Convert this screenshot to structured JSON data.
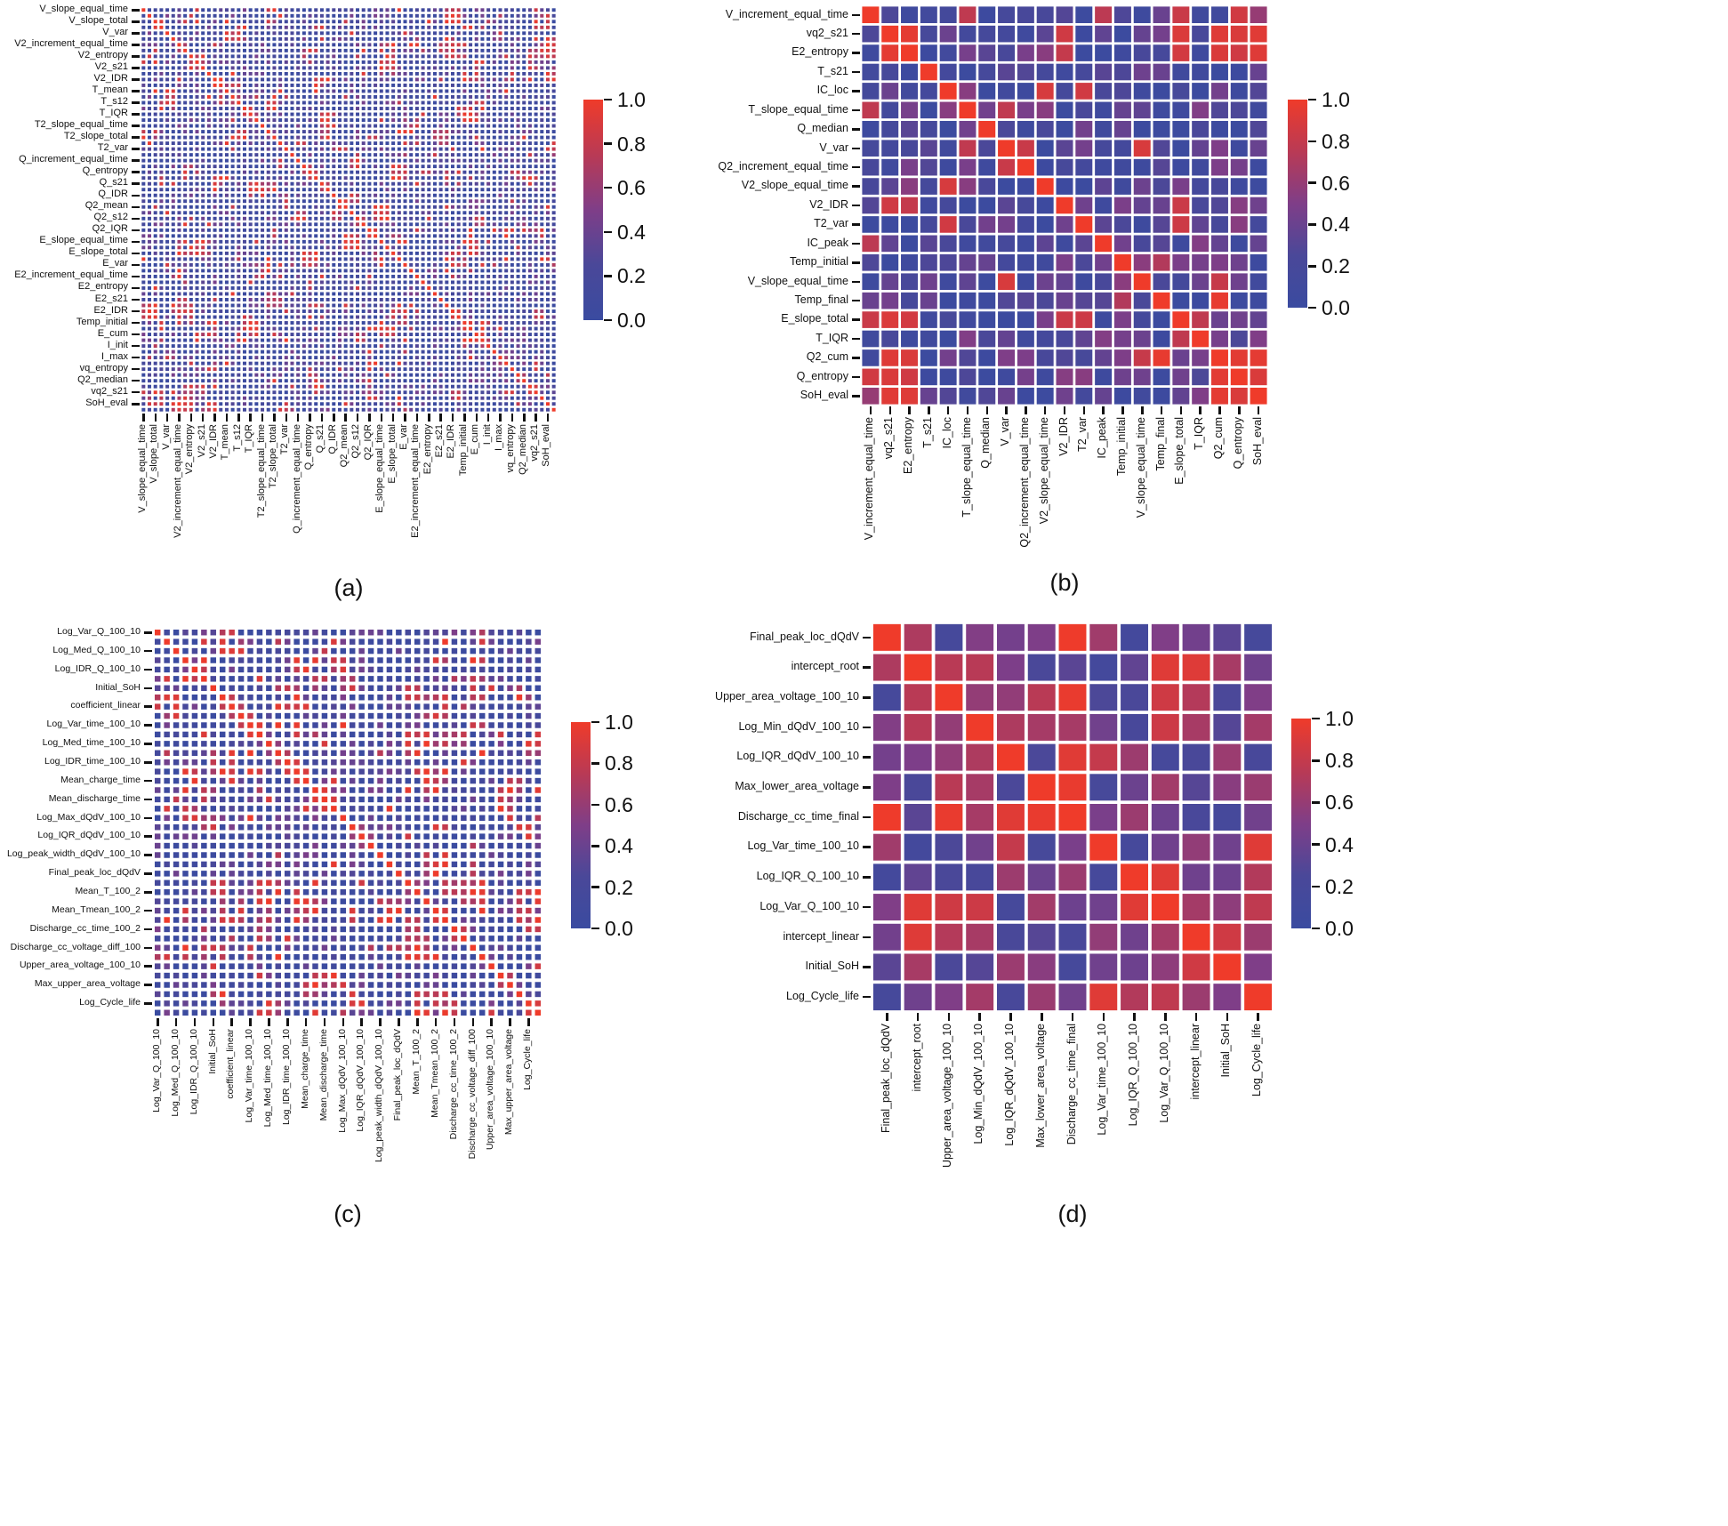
{
  "figure": {
    "background": "#ffffff",
    "colormap": {
      "name": "blue-purple-red",
      "stops": [
        {
          "t": 0.0,
          "color": "#3A4BA0"
        },
        {
          "t": 0.25,
          "color": "#4A4899"
        },
        {
          "t": 0.5,
          "color": "#7F3E88"
        },
        {
          "t": 0.75,
          "color": "#B93A55"
        },
        {
          "t": 1.0,
          "color": "#EF3B2A"
        }
      ]
    },
    "colorbar_ticks": [
      "1.0",
      "0.8",
      "0.6",
      "0.4",
      "0.2",
      "0.0"
    ],
    "value_range": [
      0,
      1
    ]
  },
  "chart_data": [
    {
      "id": "a",
      "type": "heatmap",
      "caption": "(a)",
      "legend_position": "right-colorbar",
      "grid": false,
      "tick_every": 2,
      "matrix_size": 70,
      "labels": [
        "V_slope_equal_time",
        "V_slope_total",
        "V_var",
        "V2_increment_equal_time",
        "V2_entropy",
        "V2_s21",
        "V2_IDR",
        "T_mean",
        "T_s12",
        "T_IQR",
        "T2_slope_equal_time",
        "T2_slope_total",
        "T2_var",
        "Q_increment_equal_time",
        "Q_entropy",
        "Q_s21",
        "Q_IDR",
        "Q2_mean",
        "Q2_s12",
        "Q2_IQR",
        "E_slope_equal_time",
        "E_slope_total",
        "E_var",
        "E2_increment_equal_time",
        "E2_entropy",
        "E2_s21",
        "E2_IDR",
        "Temp_initial",
        "E_cum",
        "I_init",
        "I_max",
        "vq_entropy",
        "Q2_median",
        "vq2_s21",
        "SoH_eval"
      ],
      "synthetic_values": {
        "note": "cell values not legible at source resolution; symmetric correlation matrix regenerated deterministically, diagonal = 1.0",
        "seed": 11,
        "skew": 2.4,
        "base_min": 0.0,
        "base_max": 0.5,
        "hot_prob": 0.04,
        "hot_min": 0.7,
        "cluster": true,
        "high_pairs": []
      }
    },
    {
      "id": "b",
      "type": "heatmap",
      "caption": "(b)",
      "legend_position": "right-colorbar",
      "grid": false,
      "tick_every": 1,
      "matrix_size": 21,
      "labels": [
        "V_increment_equal_time",
        "vq2_s21",
        "E2_entropy",
        "T_s21",
        "IC_loc",
        "T_slope_equal_time",
        "Q_median",
        "V_var",
        "Q2_increment_equal_time",
        "V2_slope_equal_time",
        "V2_IDR",
        "T2_var",
        "IC_peak",
        "Temp_initial",
        "V_slope_equal_time",
        "Temp_final",
        "E_slope_total",
        "T_IQR",
        "Q2_cum",
        "Q_entropy",
        "SoH_eval"
      ],
      "synthetic_values": {
        "note": "diagonal = 1.0; visibly strong off-diagonal pairs encoded in high_pairs",
        "seed": 22,
        "skew": 1.7,
        "base_min": 0.03,
        "base_max": 0.55,
        "hot_prob": 0.05,
        "hot_min": 0.75,
        "cluster": false,
        "high_pairs": [
          [
            1,
            2,
            0.95
          ],
          [
            1,
            18,
            0.92
          ],
          [
            1,
            19,
            0.9
          ],
          [
            1,
            20,
            0.93
          ],
          [
            2,
            18,
            0.9
          ],
          [
            2,
            20,
            0.92
          ],
          [
            2,
            19,
            0.85
          ],
          [
            18,
            19,
            0.94
          ],
          [
            18,
            20,
            0.95
          ],
          [
            19,
            20,
            0.9
          ],
          [
            1,
            10,
            0.85
          ],
          [
            2,
            10,
            0.8
          ],
          [
            7,
            8,
            0.82
          ],
          [
            16,
            17,
            0.78
          ],
          [
            13,
            15,
            0.72
          ],
          [
            0,
            20,
            0.6
          ]
        ]
      }
    },
    {
      "id": "c",
      "type": "heatmap",
      "caption": "(c)",
      "legend_position": "right-colorbar",
      "grid": false,
      "tick_every": 2,
      "matrix_size": 42,
      "labels": [
        "Log_Var_Q_100_10",
        "Log_Med_Q_100_10",
        "Log_IDR_Q_100_10",
        "Initial_SoH",
        "coefficient_linear",
        "Log_Var_time_100_10",
        "Log_Med_time_100_10",
        "Log_IDR_time_100_10",
        "Mean_charge_time",
        "Mean_discharge_time",
        "Log_Max_dQdV_100_10",
        "Log_IQR_dQdV_100_10",
        "Log_peak_width_dQdV_100_10",
        "Final_peak_loc_dQdV",
        "Mean_T_100_2",
        "Mean_Tmean_100_2",
        "Discharge_cc_time_100_2",
        "Discharge_cc_voltage_diff_100",
        "Upper_area_voltage_100_10",
        "Max_upper_area_voltage",
        "Log_Cycle_life"
      ],
      "synthetic_values": {
        "note": "cell values not legible at source resolution; symmetric correlation matrix regenerated deterministically, diagonal = 1.0",
        "seed": 33,
        "skew": 2.4,
        "base_min": 0.0,
        "base_max": 0.5,
        "hot_prob": 0.05,
        "hot_min": 0.7,
        "cluster": true,
        "high_pairs": []
      }
    },
    {
      "id": "d",
      "type": "heatmap",
      "caption": "(d)",
      "legend_position": "right-colorbar",
      "grid": false,
      "tick_every": 1,
      "matrix_size": 13,
      "labels": [
        "Final_peak_loc_dQdV",
        "intercept_root",
        "Upper_area_voltage_100_10",
        "Log_Min_dQdV_100_10",
        "Log_IQR_dQdV_100_10",
        "Max_lower_area_voltage",
        "Discharge_cc_time_final",
        "Log_Var_time_100_10",
        "Log_IQR_Q_100_10",
        "Log_Var_Q_100_10",
        "intercept_linear",
        "Initial_SoH",
        "Log_Cycle_life"
      ],
      "synthetic_values": {
        "note": "overall warmer matrix; diagonal = 1.0; visibly strong off-diagonal pairs encoded in high_pairs",
        "seed": 44,
        "skew": 1.1,
        "base_min": 0.15,
        "base_max": 0.75,
        "hot_prob": 0.1,
        "hot_min": 0.8,
        "cluster": false,
        "high_pairs": [
          [
            5,
            6,
            0.97
          ],
          [
            8,
            9,
            0.93
          ],
          [
            1,
            10,
            0.92
          ],
          [
            10,
            11,
            0.85
          ],
          [
            4,
            7,
            0.8
          ],
          [
            9,
            12,
            0.78
          ],
          [
            8,
            12,
            0.72
          ],
          [
            0,
            1,
            0.7
          ],
          [
            2,
            5,
            0.75
          ],
          [
            3,
            4,
            0.7
          ]
        ]
      }
    }
  ]
}
